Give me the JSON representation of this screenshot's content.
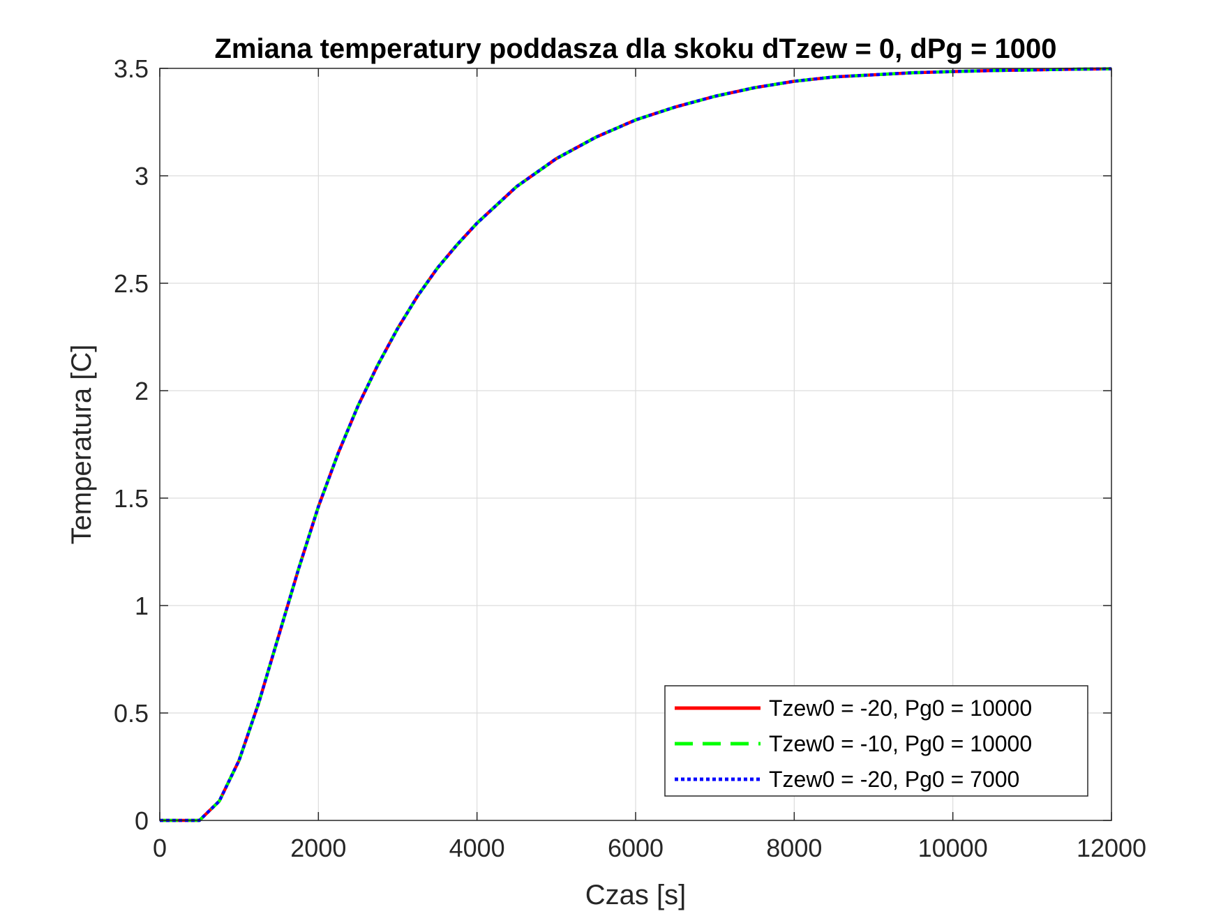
{
  "chart_data": {
    "type": "line",
    "title": "Zmiana temperatury poddasza dla skoku dTzew = 0, dPg = 1000",
    "xlabel": "Czas [s]",
    "ylabel": "Temperatura [C]",
    "xlim": [
      0,
      12000
    ],
    "ylim": [
      0,
      3.5
    ],
    "xticks": [
      0,
      2000,
      4000,
      6000,
      8000,
      10000,
      12000
    ],
    "xtick_labels": [
      "0",
      "2000",
      "4000",
      "6000",
      "8000",
      "10000",
      "12000"
    ],
    "yticks": [
      0,
      0.5,
      1,
      1.5,
      2,
      2.5,
      3,
      3.5
    ],
    "ytick_labels": [
      "0",
      "0.5",
      "1",
      "1.5",
      "2",
      "2.5",
      "3",
      "3.5"
    ],
    "grid": true,
    "legend_position": "bottom-right",
    "x": [
      0,
      250,
      500,
      750,
      1000,
      1250,
      1500,
      1750,
      2000,
      2250,
      2500,
      2750,
      3000,
      3250,
      3500,
      3750,
      4000,
      4500,
      5000,
      5500,
      6000,
      6500,
      7000,
      7500,
      8000,
      8500,
      9000,
      9500,
      10000,
      10500,
      11000,
      11500,
      12000
    ],
    "series": [
      {
        "name": "Tzew0 = -20, Pg0 = 10000",
        "color": "#ff0000",
        "style": "solid",
        "values": [
          0,
          0,
          0,
          0.09,
          0.28,
          0.55,
          0.86,
          1.17,
          1.46,
          1.71,
          1.93,
          2.12,
          2.29,
          2.44,
          2.57,
          2.68,
          2.78,
          2.95,
          3.08,
          3.18,
          3.26,
          3.32,
          3.37,
          3.41,
          3.44,
          3.46,
          3.47,
          3.48,
          3.485,
          3.49,
          3.493,
          3.496,
          3.498
        ]
      },
      {
        "name": "Tzew0 = -10, Pg0 = 10000",
        "color": "#00ff00",
        "style": "dashed",
        "values": [
          0,
          0,
          0,
          0.09,
          0.28,
          0.55,
          0.86,
          1.17,
          1.46,
          1.71,
          1.93,
          2.12,
          2.29,
          2.44,
          2.57,
          2.68,
          2.78,
          2.95,
          3.08,
          3.18,
          3.26,
          3.32,
          3.37,
          3.41,
          3.44,
          3.46,
          3.47,
          3.48,
          3.485,
          3.49,
          3.493,
          3.496,
          3.498
        ]
      },
      {
        "name": "Tzew0 = -20, Pg0 = 7000",
        "color": "#0000ff",
        "style": "dotted",
        "values": [
          0,
          0,
          0,
          0.09,
          0.28,
          0.55,
          0.86,
          1.17,
          1.46,
          1.71,
          1.93,
          2.12,
          2.29,
          2.44,
          2.57,
          2.68,
          2.78,
          2.95,
          3.08,
          3.18,
          3.26,
          3.32,
          3.37,
          3.41,
          3.44,
          3.46,
          3.47,
          3.48,
          3.485,
          3.49,
          3.493,
          3.496,
          3.498
        ]
      }
    ]
  }
}
